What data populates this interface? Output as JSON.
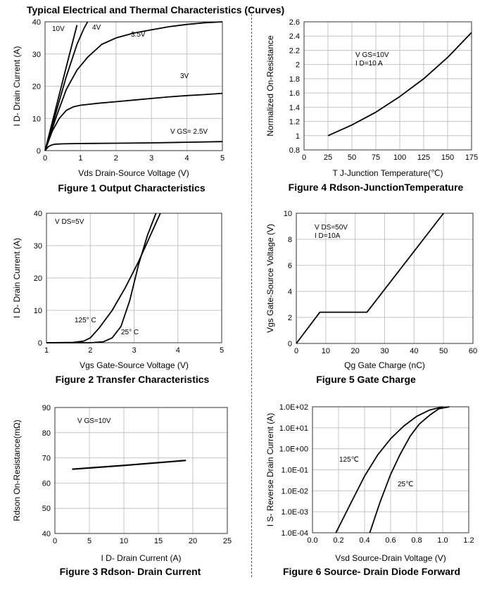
{
  "page_title": "Typical Electrical and Thermal Characteristics (Curves)",
  "chart_data": [
    {
      "id": "fig1",
      "type": "line",
      "caption": "Figure 1 Output Characteristics",
      "xlabel": "Vds Drain-Source Voltage (V)",
      "ylabel": "I D- Drain Current (A)",
      "xlim": [
        0,
        5
      ],
      "ylim": [
        0,
        40
      ],
      "xticks": [
        "0",
        "1",
        "2",
        "3",
        "4",
        "5"
      ],
      "yticks": [
        "0",
        "10",
        "20",
        "30",
        "40"
      ],
      "grid": true,
      "series": [
        {
          "name": "10V",
          "x": [
            0,
            0.3,
            0.6,
            0.9
          ],
          "y": [
            0,
            13,
            26,
            39
          ]
        },
        {
          "name": "4V",
          "x": [
            0,
            0.3,
            0.6,
            0.9,
            1.1,
            1.2
          ],
          "y": [
            0,
            11.5,
            23,
            33,
            38,
            40
          ]
        },
        {
          "name": "3.5V",
          "x": [
            0,
            0.3,
            0.6,
            0.9,
            1.2,
            1.6,
            2,
            2.5,
            3,
            3.5,
            4,
            4.5,
            5
          ],
          "y": [
            0,
            10,
            19,
            25,
            29,
            33,
            35,
            36.5,
            37.5,
            38.5,
            39.2,
            39.7,
            40
          ]
        },
        {
          "name": "3V",
          "x": [
            0,
            0.2,
            0.4,
            0.6,
            0.8,
            1,
            1.5,
            2,
            2.5,
            3,
            3.5,
            4,
            4.5,
            5
          ],
          "y": [
            0,
            6,
            10,
            12.5,
            13.6,
            14.1,
            14.7,
            15.2,
            15.7,
            16.2,
            16.7,
            17.1,
            17.4,
            17.8
          ]
        },
        {
          "name": "V GS= 2.5V",
          "x": [
            0,
            0.1,
            0.2,
            0.3,
            0.5,
            1,
            2,
            3,
            4,
            5
          ],
          "y": [
            0,
            1.3,
            1.8,
            2,
            2.1,
            2.2,
            2.3,
            2.4,
            2.6,
            2.8
          ]
        }
      ]
    },
    {
      "id": "fig4",
      "type": "line",
      "caption": "Figure 4 Rdson-JunctionTemperature",
      "xlabel": "T J-Junction Temperature(℃)",
      "ylabel": "Normalized On-Resistance",
      "xlim": [
        0,
        175
      ],
      "ylim": [
        0.8,
        2.6
      ],
      "xticks": [
        "0",
        "25",
        "50",
        "75",
        "100",
        "125",
        "150",
        "175"
      ],
      "yticks": [
        "0.8",
        "1",
        "1.2",
        "1.4",
        "1.6",
        "1.8",
        "2",
        "2.2",
        "2.4",
        "2.6"
      ],
      "grid": true,
      "annotations": [
        "V GS=10V",
        "I D=10 A"
      ],
      "series": [
        {
          "x": [
            25,
            50,
            75,
            100,
            125,
            150,
            175
          ],
          "y": [
            1.0,
            1.15,
            1.33,
            1.55,
            1.8,
            2.1,
            2.45
          ]
        }
      ]
    },
    {
      "id": "fig2",
      "type": "line",
      "caption": "Figure 2 Transfer Characteristics",
      "xlabel": "Vgs Gate-Source Voltage (V)",
      "ylabel": "I D- Drain Current (A)",
      "xlim": [
        1,
        5
      ],
      "ylim": [
        0,
        40
      ],
      "xticks": [
        "1",
        "2",
        "3",
        "4",
        "5"
      ],
      "yticks": [
        "0",
        "10",
        "20",
        "30",
        "40"
      ],
      "grid": true,
      "annotations": [
        "V DS=5V"
      ],
      "series": [
        {
          "name": "125° C",
          "x": [
            1,
            1.6,
            1.85,
            2.0,
            2.2,
            2.5,
            2.8,
            3.1,
            3.3,
            3.6
          ],
          "y": [
            0,
            0.1,
            0.5,
            1.5,
            4.5,
            10,
            17,
            25,
            31,
            40
          ]
        },
        {
          "name": "25° C",
          "x": [
            1,
            2.0,
            2.3,
            2.5,
            2.7,
            2.9,
            3.1,
            3.3,
            3.5
          ],
          "y": [
            0,
            0,
            0.3,
            1.5,
            5,
            13,
            24,
            33,
            40
          ]
        }
      ]
    },
    {
      "id": "fig5",
      "type": "line",
      "caption": "Figure 5 Gate Charge",
      "xlabel": "Qg Gate Charge (nC)",
      "ylabel": "Vgs Gate-Source Voltage (V)",
      "xlim": [
        0,
        60
      ],
      "ylim": [
        0,
        10
      ],
      "xticks": [
        "0",
        "10",
        "20",
        "30",
        "40",
        "50",
        "60"
      ],
      "yticks": [
        "0",
        "2",
        "4",
        "6",
        "8",
        "10"
      ],
      "grid": true,
      "annotations": [
        "V DS=50V",
        "I D=10A"
      ],
      "series": [
        {
          "x": [
            0,
            8,
            24,
            50
          ],
          "y": [
            0,
            2.4,
            2.4,
            10
          ]
        }
      ]
    },
    {
      "id": "fig3",
      "type": "line",
      "caption": "Figure 3 Rdson- Drain Current",
      "xlabel": "I D- Drain Current (A)",
      "ylabel": "Rdson On-Resistance(mΩ)",
      "xlim": [
        0,
        25
      ],
      "ylim": [
        40,
        90
      ],
      "xticks": [
        "0",
        "5",
        "10",
        "15",
        "20",
        "25"
      ],
      "yticks": [
        "40",
        "50",
        "60",
        "70",
        "80",
        "90"
      ],
      "grid": true,
      "annotations": [
        "V GS=10V"
      ],
      "series": [
        {
          "x": [
            2.5,
            10,
            19
          ],
          "y": [
            65.5,
            67,
            69
          ]
        }
      ]
    },
    {
      "id": "fig6",
      "type": "line",
      "caption": "Figure 6 Source- Drain Diode Forward",
      "xlabel": "Vsd Source-Drain Voltage (V)",
      "ylabel": "I S- Reverse Drain Current (A)",
      "xlim": [
        0,
        1.2
      ],
      "ylim": [
        0.0001,
        100
      ],
      "yscale": "log",
      "xticks": [
        "0.0",
        "0.2",
        "0.4",
        "0.6",
        "0.8",
        "1.0",
        "1.2"
      ],
      "yticks": [
        "1.0E-04",
        "1.0E-03",
        "1.0E-02",
        "1.0E-01",
        "1.0E+00",
        "1.0E+01",
        "1.0E+02"
      ],
      "grid": true,
      "series": [
        {
          "name": "125℃",
          "x": [
            0.18,
            0.3,
            0.4,
            0.5,
            0.6,
            0.7,
            0.8,
            0.9,
            1.0
          ],
          "y": [
            0.0001,
            0.003,
            0.05,
            0.5,
            3,
            12,
            35,
            70,
            100
          ]
        },
        {
          "name": "25℃",
          "x": [
            0.44,
            0.52,
            0.6,
            0.67,
            0.75,
            0.82,
            0.9,
            0.97,
            1.05
          ],
          "y": [
            0.0001,
            0.003,
            0.06,
            0.5,
            4,
            15,
            40,
            80,
            100
          ]
        }
      ]
    }
  ]
}
